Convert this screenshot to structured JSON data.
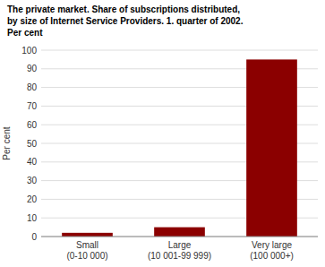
{
  "chart_data": {
    "type": "bar",
    "title": "The private market. Share of subscriptions distributed,\nby size of Internet Service Providers. 1. quarter of 2002.\nPer cent",
    "ylabel": "Per cent",
    "categories": [
      "Small\n(0-10 000)",
      "Large\n(10 001-99 999)",
      "Very large\n(100 000+)"
    ],
    "values": [
      2,
      5,
      95
    ],
    "color": "#8B0000",
    "ylim": [
      0,
      100
    ],
    "yticks": [
      0,
      10,
      20,
      30,
      40,
      50,
      60,
      70,
      80,
      90,
      100
    ],
    "grid": true
  }
}
